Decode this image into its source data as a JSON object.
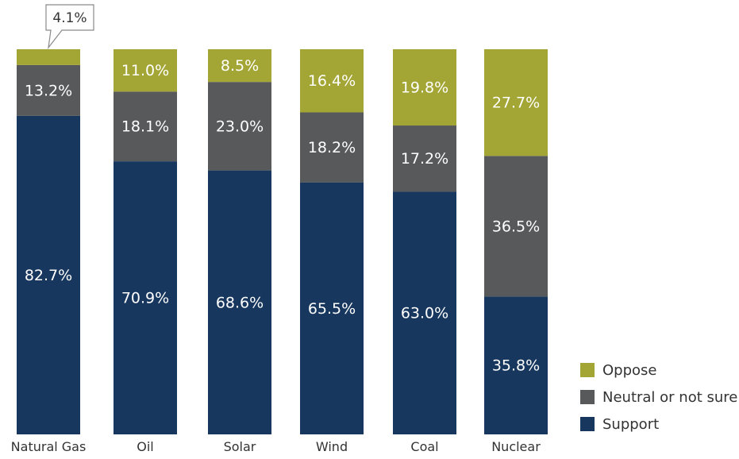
{
  "chart_data": {
    "type": "bar",
    "stacked": true,
    "orientation": "vertical",
    "categories": [
      "Natural Gas",
      "Oil",
      "Solar",
      "Wind",
      "Coal",
      "Nuclear"
    ],
    "series": [
      {
        "name": "Support",
        "color": "#17375e",
        "values": [
          82.7,
          70.9,
          68.6,
          65.5,
          63.0,
          35.8
        ],
        "labels": [
          "82.7%",
          "70.9%",
          "68.6%",
          "65.5%",
          "63.0%",
          "35.8%"
        ]
      },
      {
        "name": "Neutral or not sure",
        "color": "#58595b",
        "values": [
          13.2,
          18.1,
          23.0,
          18.2,
          17.2,
          36.5
        ],
        "labels": [
          "13.2%",
          "18.1%",
          "23.0%",
          "18.2%",
          "17.2%",
          "36.5%"
        ]
      },
      {
        "name": "Oppose",
        "color": "#a3a534",
        "values": [
          4.1,
          11.0,
          8.5,
          16.4,
          19.8,
          27.7
        ],
        "labels": [
          "4.1%",
          "11.0%",
          "8.5%",
          "16.4%",
          "19.8%",
          "27.7%"
        ]
      }
    ],
    "legend": {
      "position": "bottom-right",
      "order": [
        "Oppose",
        "Neutral or not sure",
        "Support"
      ]
    },
    "callout": {
      "category": "Natural Gas",
      "series": "Oppose",
      "label": "4.1%"
    },
    "ylim": [
      0,
      100
    ],
    "grid": false
  }
}
